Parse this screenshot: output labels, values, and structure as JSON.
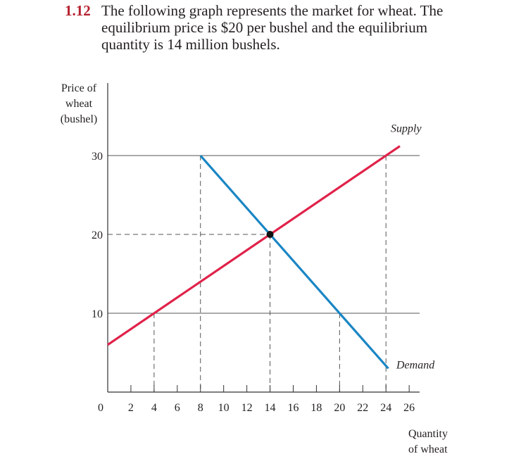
{
  "chart_data": {
    "type": "line",
    "title_number": "1.12",
    "title_lines": [
      "The following graph represents the market for wheat. The",
      "equilibrium price is $20 per bushel and the equilibrium",
      "quantity is 14 million bushels."
    ],
    "y_label_lines": [
      "Price of",
      "wheat",
      "(bushel)"
    ],
    "x_label_lines": [
      "Quantity",
      "of wheat"
    ],
    "xlim": [
      0,
      26.9
    ],
    "ylim": [
      0,
      39.2
    ],
    "xticks": [
      0,
      2,
      4,
      6,
      8,
      10,
      12,
      14,
      16,
      18,
      20,
      22,
      24,
      26
    ],
    "yticks": [
      10,
      20,
      30
    ],
    "series": [
      {
        "name": "Supply",
        "color": "#e0224a",
        "x": [
          0,
          25.2
        ],
        "values": [
          6,
          31.2
        ]
      },
      {
        "name": "Demand",
        "color": "#1a86c4",
        "x": [
          8,
          24.2
        ],
        "values": [
          30,
          3
        ]
      }
    ],
    "hlines": [
      {
        "y": 30,
        "style": "solid"
      },
      {
        "y": 10,
        "style": "solid"
      },
      {
        "y": 20,
        "style": "dashed",
        "x_end": 14
      }
    ],
    "guides": {
      "x": [
        4,
        8,
        14,
        20,
        24
      ],
      "y": [
        10,
        30,
        20,
        10,
        30
      ]
    },
    "equilibrium": {
      "x": 14,
      "y": 20
    }
  }
}
